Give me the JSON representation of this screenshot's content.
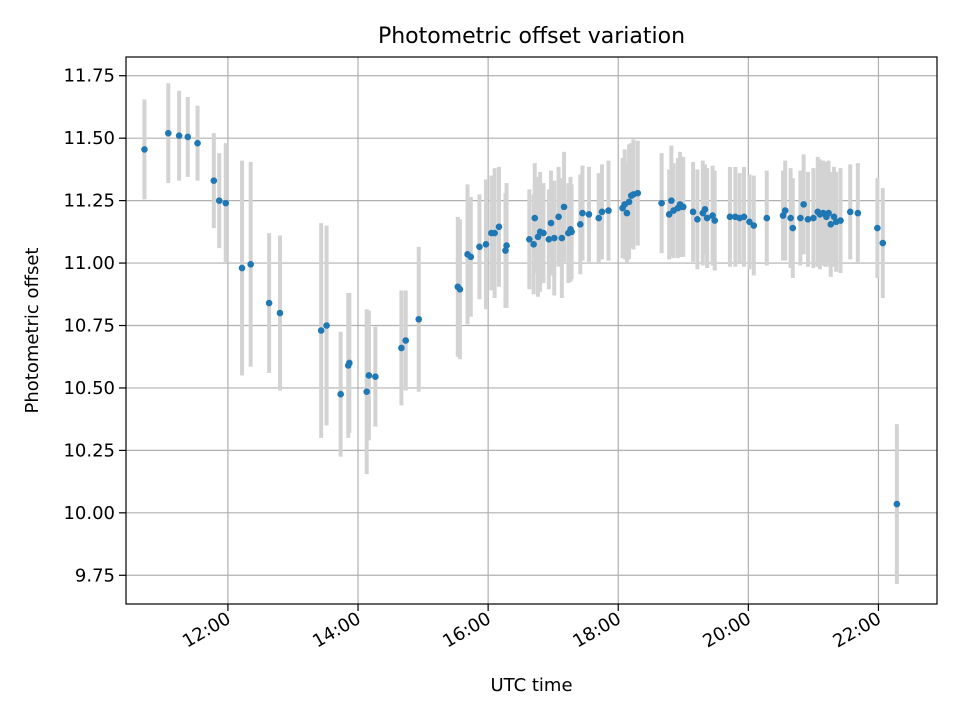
{
  "chart_data": {
    "type": "scatter",
    "title": "Photometric offset variation",
    "xlabel": "UTC time",
    "ylabel": "Photometric offset",
    "x_unit": "hours UTC",
    "xlim": [
      "10:26",
      "22:54"
    ],
    "ylim": [
      9.635,
      11.825
    ],
    "x_ticks": [
      "12:00",
      "14:00",
      "16:00",
      "18:00",
      "20:00",
      "22:00"
    ],
    "y_ticks": [
      "9.75",
      "10.00",
      "10.25",
      "10.50",
      "10.75",
      "11.00",
      "11.25",
      "11.50",
      "11.75"
    ],
    "grid": true,
    "legend": "none",
    "colors": {
      "points": "#1f77b4",
      "error_bars": "#d3d3d3",
      "grid": "#b0b0b0"
    },
    "series": [
      {
        "x": [
          "10:43",
          "11:05",
          "11:15",
          "11:23",
          "11:32",
          "11:47",
          "11:52",
          "11:58",
          "12:13",
          "12:21",
          "12:38",
          "12:48",
          "13:26",
          "13:31",
          "13:44",
          "13:51",
          "13:52",
          "14:08",
          "14:10",
          "14:16",
          "14:40",
          "14:44",
          "14:56",
          "15:32",
          "15:34",
          "15:41",
          "15:44",
          "15:52",
          "15:58",
          "16:03",
          "16:06",
          "16:10",
          "16:16",
          "16:17",
          "16:38",
          "16:42",
          "16:43",
          "16:46",
          "16:48",
          "16:51",
          "16:56",
          "16:58",
          "17:01",
          "17:05",
          "17:08",
          "17:10",
          "17:14",
          "17:16",
          "17:17",
          "17:25",
          "17:27",
          "17:33",
          "17:42",
          "17:45",
          "17:51",
          "18:04",
          "18:06",
          "18:08",
          "18:10",
          "18:12",
          "18:14",
          "18:18",
          "18:40",
          "18:47",
          "18:49",
          "18:51",
          "18:55",
          "18:57",
          "18:58",
          "19:00",
          "19:09",
          "19:13",
          "19:18",
          "19:20",
          "19:22",
          "19:27",
          "19:29",
          "19:43",
          "19:48",
          "19:52",
          "19:56",
          "20:01",
          "20:05",
          "20:17",
          "20:32",
          "20:34",
          "20:39",
          "20:41",
          "20:48",
          "20:51",
          "20:55",
          "21:00",
          "21:04",
          "21:06",
          "21:09",
          "21:11",
          "21:12",
          "21:14",
          "21:16",
          "21:19",
          "21:21",
          "21:25",
          "21:34",
          "21:41",
          "21:59",
          "22:04",
          "22:17"
        ],
        "y": [
          11.455,
          11.52,
          11.51,
          11.505,
          11.48,
          11.33,
          11.25,
          11.24,
          10.98,
          10.995,
          10.84,
          10.8,
          10.73,
          10.75,
          10.475,
          10.59,
          10.6,
          10.485,
          10.55,
          10.545,
          10.66,
          10.69,
          10.775,
          10.905,
          10.895,
          11.035,
          11.025,
          11.065,
          11.075,
          11.12,
          11.12,
          11.145,
          11.05,
          11.07,
          11.095,
          11.075,
          11.18,
          11.105,
          11.125,
          11.12,
          11.095,
          11.16,
          11.1,
          11.185,
          11.1,
          11.225,
          11.12,
          11.135,
          11.125,
          11.155,
          11.2,
          11.195,
          11.18,
          11.205,
          11.21,
          11.22,
          11.235,
          11.2,
          11.245,
          11.27,
          11.275,
          11.28,
          11.24,
          11.195,
          11.25,
          11.21,
          11.22,
          11.235,
          11.225,
          11.225,
          11.205,
          11.175,
          11.2,
          11.215,
          11.18,
          11.19,
          11.17,
          11.185,
          11.185,
          11.18,
          11.185,
          11.165,
          11.15,
          11.18,
          11.19,
          11.21,
          11.18,
          11.14,
          11.18,
          11.235,
          11.175,
          11.18,
          11.205,
          11.195,
          11.2,
          11.195,
          11.185,
          11.2,
          11.155,
          11.185,
          11.165,
          11.17,
          11.205,
          11.2,
          11.14,
          11.08,
          10.035
        ],
        "yerr": [
          0.2,
          0.2,
          0.18,
          0.16,
          0.15,
          0.19,
          0.19,
          0.24,
          0.43,
          0.41,
          0.28,
          0.31,
          0.43,
          0.4,
          0.25,
          0.29,
          0.28,
          0.33,
          0.26,
          0.2,
          0.23,
          0.2,
          0.29,
          0.28,
          0.28,
          0.28,
          0.24,
          0.21,
          0.26,
          0.23,
          0.26,
          0.24,
          0.23,
          0.25,
          0.2,
          0.2,
          0.22,
          0.24,
          0.24,
          0.2,
          0.2,
          0.21,
          0.23,
          0.2,
          0.24,
          0.22,
          0.2,
          0.21,
          0.19,
          0.2,
          0.19,
          0.19,
          0.18,
          0.19,
          0.2,
          0.2,
          0.22,
          0.2,
          0.23,
          0.21,
          0.22,
          0.21,
          0.2,
          0.18,
          0.22,
          0.19,
          0.2,
          0.21,
          0.2,
          0.2,
          0.2,
          0.2,
          0.21,
          0.18,
          0.2,
          0.2,
          0.2,
          0.2,
          0.2,
          0.18,
          0.2,
          0.19,
          0.2,
          0.19,
          0.18,
          0.2,
          0.2,
          0.2,
          0.19,
          0.2,
          0.19,
          0.2,
          0.22,
          0.22,
          0.21,
          0.21,
          0.2,
          0.21,
          0.21,
          0.2,
          0.2,
          0.21,
          0.19,
          0.2,
          0.2,
          0.22,
          0.32
        ]
      }
    ]
  }
}
